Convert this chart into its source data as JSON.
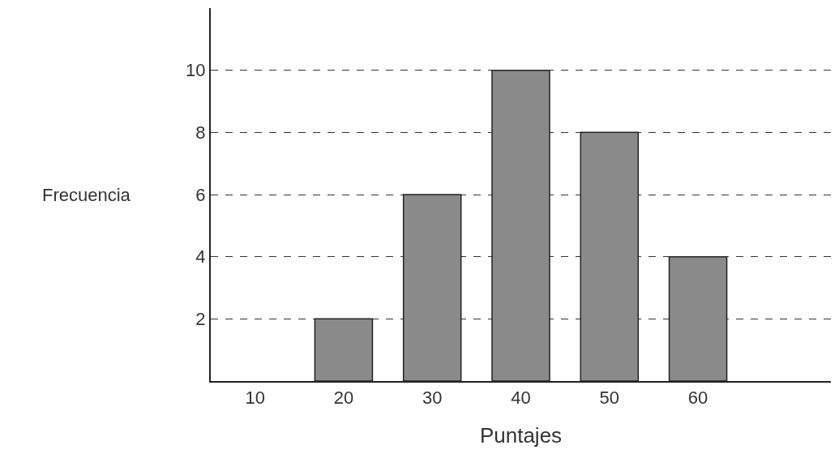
{
  "chart_data": {
    "type": "bar",
    "xlabel": "Puntajes",
    "ylabel": "Frecuencia",
    "categories": [
      "10",
      "20",
      "30",
      "40",
      "50",
      "60"
    ],
    "values": [
      null,
      2,
      6,
      10,
      8,
      4
    ],
    "color": "#8a8a8a",
    "ylim": [
      0,
      12
    ],
    "yticks": [
      2,
      4,
      6,
      8,
      10
    ],
    "grid": "y",
    "line_style": "dashed"
  }
}
